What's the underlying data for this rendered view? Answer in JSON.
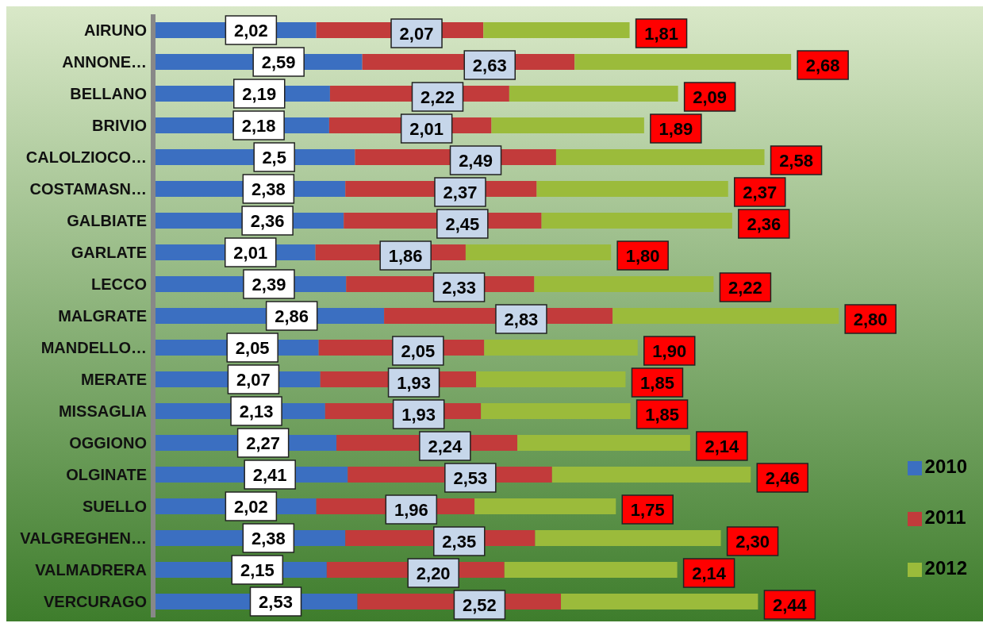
{
  "chart_data": {
    "type": "bar",
    "orientation": "horizontal",
    "stacked": true,
    "legend": "right",
    "categories": [
      "AIRUNO",
      "ANNONE…",
      "BELLANO",
      "BRIVIO",
      "CALOLZIOCO…",
      "COSTAMASN…",
      "GALBIATE",
      "GARLATE",
      "LECCO",
      "MALGRATE",
      "MANDELLO…",
      "MERATE",
      "MISSAGLIA",
      "OGGIONO",
      "OLGINATE",
      "SUELLO",
      "VALGREGHEN…",
      "VALMADRERA",
      "VERCURAGO"
    ],
    "series": [
      {
        "name": "2010",
        "color": "#3b6fc1",
        "values": [
          2.02,
          2.59,
          2.19,
          2.18,
          2.5,
          2.38,
          2.36,
          2.01,
          2.39,
          2.86,
          2.05,
          2.07,
          2.13,
          2.27,
          2.41,
          2.02,
          2.38,
          2.15,
          2.53
        ],
        "value_labels": [
          "2,02",
          "2,59",
          "2,19",
          "2,18",
          "2,5",
          "2,38",
          "2,36",
          "2,01",
          "2,39",
          "2,86",
          "2,05",
          "2,07",
          "2,13",
          "2,27",
          "2,41",
          "2,02",
          "2,38",
          "2,15",
          "2,53"
        ]
      },
      {
        "name": "2011",
        "color": "#c23b3b",
        "values": [
          2.07,
          2.63,
          2.22,
          2.01,
          2.49,
          2.37,
          2.45,
          1.86,
          2.33,
          2.83,
          2.05,
          1.93,
          1.93,
          2.24,
          2.53,
          1.96,
          2.35,
          2.2,
          2.52
        ],
        "value_labels": [
          "2,07",
          "2,63",
          "2,22",
          "2,01",
          "2,49",
          "2,37",
          "2,45",
          "1,86",
          "2,33",
          "2,83",
          "2,05",
          "1,93",
          "1,93",
          "2,24",
          "2,53",
          "1,96",
          "2,35",
          "2,20",
          "2,52"
        ]
      },
      {
        "name": "2012",
        "color": "#9bbb3b",
        "values": [
          1.81,
          2.68,
          2.09,
          1.89,
          2.58,
          2.37,
          2.36,
          1.8,
          2.22,
          2.8,
          1.9,
          1.85,
          1.85,
          2.14,
          2.46,
          1.75,
          2.3,
          2.14,
          2.44
        ],
        "value_labels": [
          "1,81",
          "2,68",
          "2,09",
          "1,89",
          "2,58",
          "2,37",
          "2,36",
          "1,80",
          "2,22",
          "2,80",
          "1,90",
          "1,85",
          "1,85",
          "2,14",
          "2,46",
          "1,75",
          "2,30",
          "2,14",
          "2,44"
        ]
      }
    ]
  }
}
